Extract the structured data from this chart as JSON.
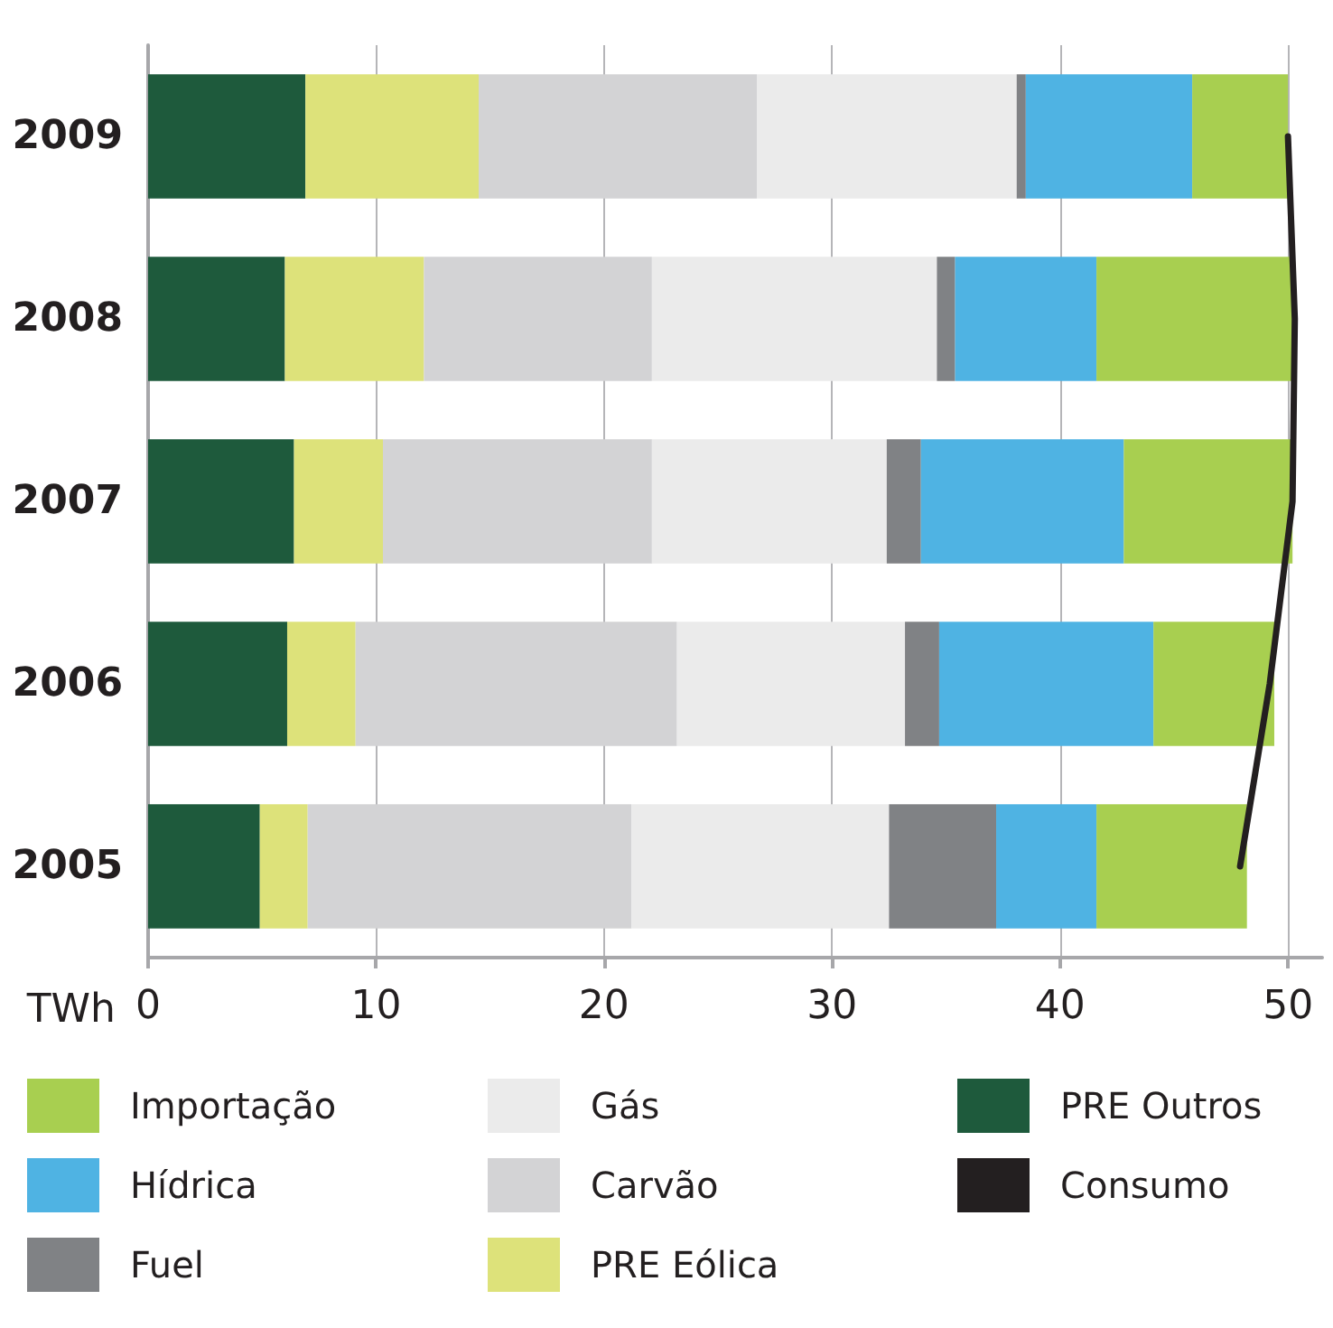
{
  "chart_data": {
    "type": "bar",
    "orientation": "horizontal",
    "stacked": true,
    "xlabel": "TWh",
    "categories": [
      "2009",
      "2008",
      "2007",
      "2006",
      "2005"
    ],
    "series": [
      {
        "name": "PRE Outros",
        "color": "#1e5a3c",
        "values": [
          6.9,
          6.0,
          6.4,
          6.1,
          4.9
        ]
      },
      {
        "name": "PRE Eólica",
        "color": "#dde27a",
        "values": [
          7.6,
          6.1,
          3.9,
          3.0,
          2.1
        ]
      },
      {
        "name": "Carvão",
        "color": "#d3d3d5",
        "values": [
          12.2,
          10.0,
          11.8,
          14.1,
          14.2
        ]
      },
      {
        "name": "Gás",
        "color": "#ebebeb",
        "values": [
          11.4,
          12.5,
          10.3,
          10.0,
          11.3
        ]
      },
      {
        "name": "Fuel",
        "color": "#808285",
        "values": [
          0.4,
          0.8,
          1.5,
          1.5,
          4.7
        ]
      },
      {
        "name": "Hídrica",
        "color": "#4fb3e3",
        "values": [
          7.3,
          6.2,
          8.9,
          9.4,
          4.4
        ]
      },
      {
        "name": "Importação",
        "color": "#a8cf50",
        "values": [
          4.2,
          8.6,
          7.4,
          5.3,
          6.6
        ]
      },
      {
        "name": "Consumo",
        "type": "line",
        "color": "#231f20",
        "values": [
          50.0,
          50.3,
          50.2,
          49.2,
          47.9
        ]
      }
    ],
    "xlim": [
      0,
      51.5
    ],
    "xticks": [
      0,
      10,
      20,
      30,
      40,
      50
    ],
    "grid": "x",
    "legend": "bottom",
    "marker": "none",
    "line_style": "solid"
  }
}
